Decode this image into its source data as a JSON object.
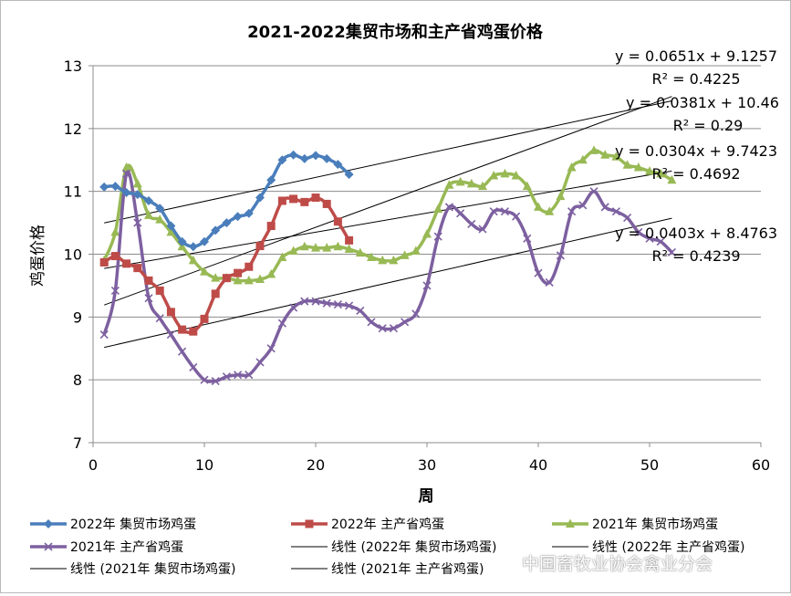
{
  "chart_data": {
    "type": "line",
    "title": "2021-2022集贸市场和主产省鸡蛋价格",
    "xlabel": "周",
    "ylabel": "鸡蛋价格",
    "xlim": [
      0,
      60
    ],
    "ylim": [
      7,
      13
    ],
    "x_ticks": [
      "0",
      "10",
      "20",
      "30",
      "40",
      "50",
      "60"
    ],
    "y_ticks": [
      "7",
      "8",
      "9",
      "10",
      "11",
      "12",
      "13"
    ],
    "grid": true,
    "legend_position": "bottom",
    "series": [
      {
        "name": "2022年 集贸市场鸡蛋",
        "color": "#4a7ebb",
        "marker": "diamond",
        "x": [
          1,
          2,
          3,
          4,
          5,
          6,
          7,
          8,
          9,
          10,
          11,
          12,
          13,
          14,
          15,
          16,
          17,
          18,
          19,
          20,
          21,
          22,
          23
        ],
        "values": [
          11.07,
          11.08,
          10.98,
          10.95,
          10.85,
          10.73,
          10.45,
          10.2,
          10.12,
          10.2,
          10.38,
          10.5,
          10.6,
          10.65,
          10.9,
          11.18,
          11.5,
          11.58,
          11.52,
          11.57,
          11.52,
          11.43,
          11.27
        ]
      },
      {
        "name": "2022年 主产省鸡蛋",
        "color": "#be4b48",
        "marker": "square",
        "x": [
          1,
          2,
          3,
          4,
          5,
          6,
          7,
          8,
          9,
          10,
          11,
          12,
          13,
          14,
          15,
          16,
          17,
          18,
          19,
          20,
          21,
          22,
          23
        ],
        "values": [
          9.87,
          9.97,
          9.85,
          9.78,
          9.58,
          9.42,
          9.08,
          8.8,
          8.77,
          8.97,
          9.37,
          9.62,
          9.7,
          9.8,
          10.13,
          10.45,
          10.85,
          10.88,
          10.83,
          10.9,
          10.8,
          10.52,
          10.22
        ]
      },
      {
        "name": "2021年 集贸市场鸡蛋",
        "color": "#98b954",
        "marker": "triangle",
        "x": [
          1,
          2,
          3,
          4,
          5,
          6,
          7,
          8,
          9,
          10,
          11,
          12,
          13,
          14,
          15,
          16,
          17,
          18,
          19,
          20,
          21,
          22,
          23,
          24,
          25,
          26,
          27,
          28,
          29,
          30,
          31,
          32,
          33,
          34,
          35,
          36,
          37,
          38,
          39,
          40,
          41,
          42,
          43,
          44,
          45,
          46,
          47,
          48,
          49,
          50,
          51,
          52
        ],
        "values": [
          9.9,
          10.35,
          11.38,
          11.12,
          10.62,
          10.55,
          10.35,
          10.12,
          9.9,
          9.72,
          9.62,
          9.62,
          9.58,
          9.58,
          9.6,
          9.68,
          9.95,
          10.05,
          10.12,
          10.1,
          10.1,
          10.12,
          10.08,
          10.02,
          9.95,
          9.9,
          9.9,
          9.98,
          10.05,
          10.32,
          10.72,
          11.1,
          11.15,
          11.12,
          11.08,
          11.25,
          11.28,
          11.25,
          11.08,
          10.75,
          10.68,
          10.92,
          11.38,
          11.5,
          11.65,
          11.58,
          11.55,
          11.42,
          11.38,
          11.32,
          11.28,
          11.18
        ]
      },
      {
        "name": "2021年 主产省鸡蛋",
        "color": "#7d60a0",
        "marker": "x",
        "x": [
          1,
          2,
          3,
          4,
          5,
          6,
          7,
          8,
          9,
          10,
          11,
          12,
          13,
          14,
          15,
          16,
          17,
          18,
          19,
          20,
          21,
          22,
          23,
          24,
          25,
          26,
          27,
          28,
          29,
          30,
          31,
          32,
          33,
          34,
          35,
          36,
          37,
          38,
          39,
          40,
          41,
          42,
          43,
          44,
          45,
          46,
          47,
          48,
          49,
          50,
          51,
          52
        ],
        "values": [
          8.72,
          9.42,
          11.28,
          10.5,
          9.3,
          8.98,
          8.72,
          8.45,
          8.2,
          8.0,
          7.98,
          8.05,
          8.08,
          8.08,
          8.28,
          8.5,
          8.9,
          9.15,
          9.25,
          9.25,
          9.22,
          9.2,
          9.18,
          9.1,
          8.92,
          8.82,
          8.82,
          8.92,
          9.05,
          9.5,
          10.28,
          10.75,
          10.65,
          10.48,
          10.4,
          10.68,
          10.68,
          10.6,
          10.25,
          9.7,
          9.55,
          9.98,
          10.68,
          10.78,
          11.0,
          10.75,
          10.68,
          10.58,
          10.35,
          10.25,
          10.2,
          10.03
        ]
      }
    ],
    "trendlines": [
      {
        "name": "线性 (2022年 集贸市场鸡蛋)",
        "color": "#000000",
        "slope": 0.0651,
        "intercept": 9.1257,
        "x_range": [
          1,
          52
        ],
        "equation": "y = 0.0651x + 9.1257",
        "r2": "R² = 0.4225"
      },
      {
        "name": "线性 (2022年 主产省鸡蛋)",
        "color": "#000000",
        "slope": 0.0381,
        "intercept": 10.46,
        "x_range": [
          1,
          52
        ],
        "equation": "y = 0.0381x + 10.46",
        "r2": "R² = 0.29"
      },
      {
        "name": "线性 (2021年 集贸市场鸡蛋)",
        "color": "#000000",
        "slope": 0.0304,
        "intercept": 9.7423,
        "x_range": [
          1,
          52
        ],
        "equation": "y = 0.0304x + 9.7423",
        "r2": "R² = 0.4692"
      },
      {
        "name": "线性 (2021年 主产省鸡蛋)",
        "color": "#000000",
        "slope": 0.0403,
        "intercept": 8.4763,
        "x_range": [
          1,
          52
        ],
        "equation": "y = 0.0403x + 8.4763",
        "r2": "R² = 0.4239"
      }
    ]
  },
  "watermark": "中国畜牧业协会禽业分会"
}
